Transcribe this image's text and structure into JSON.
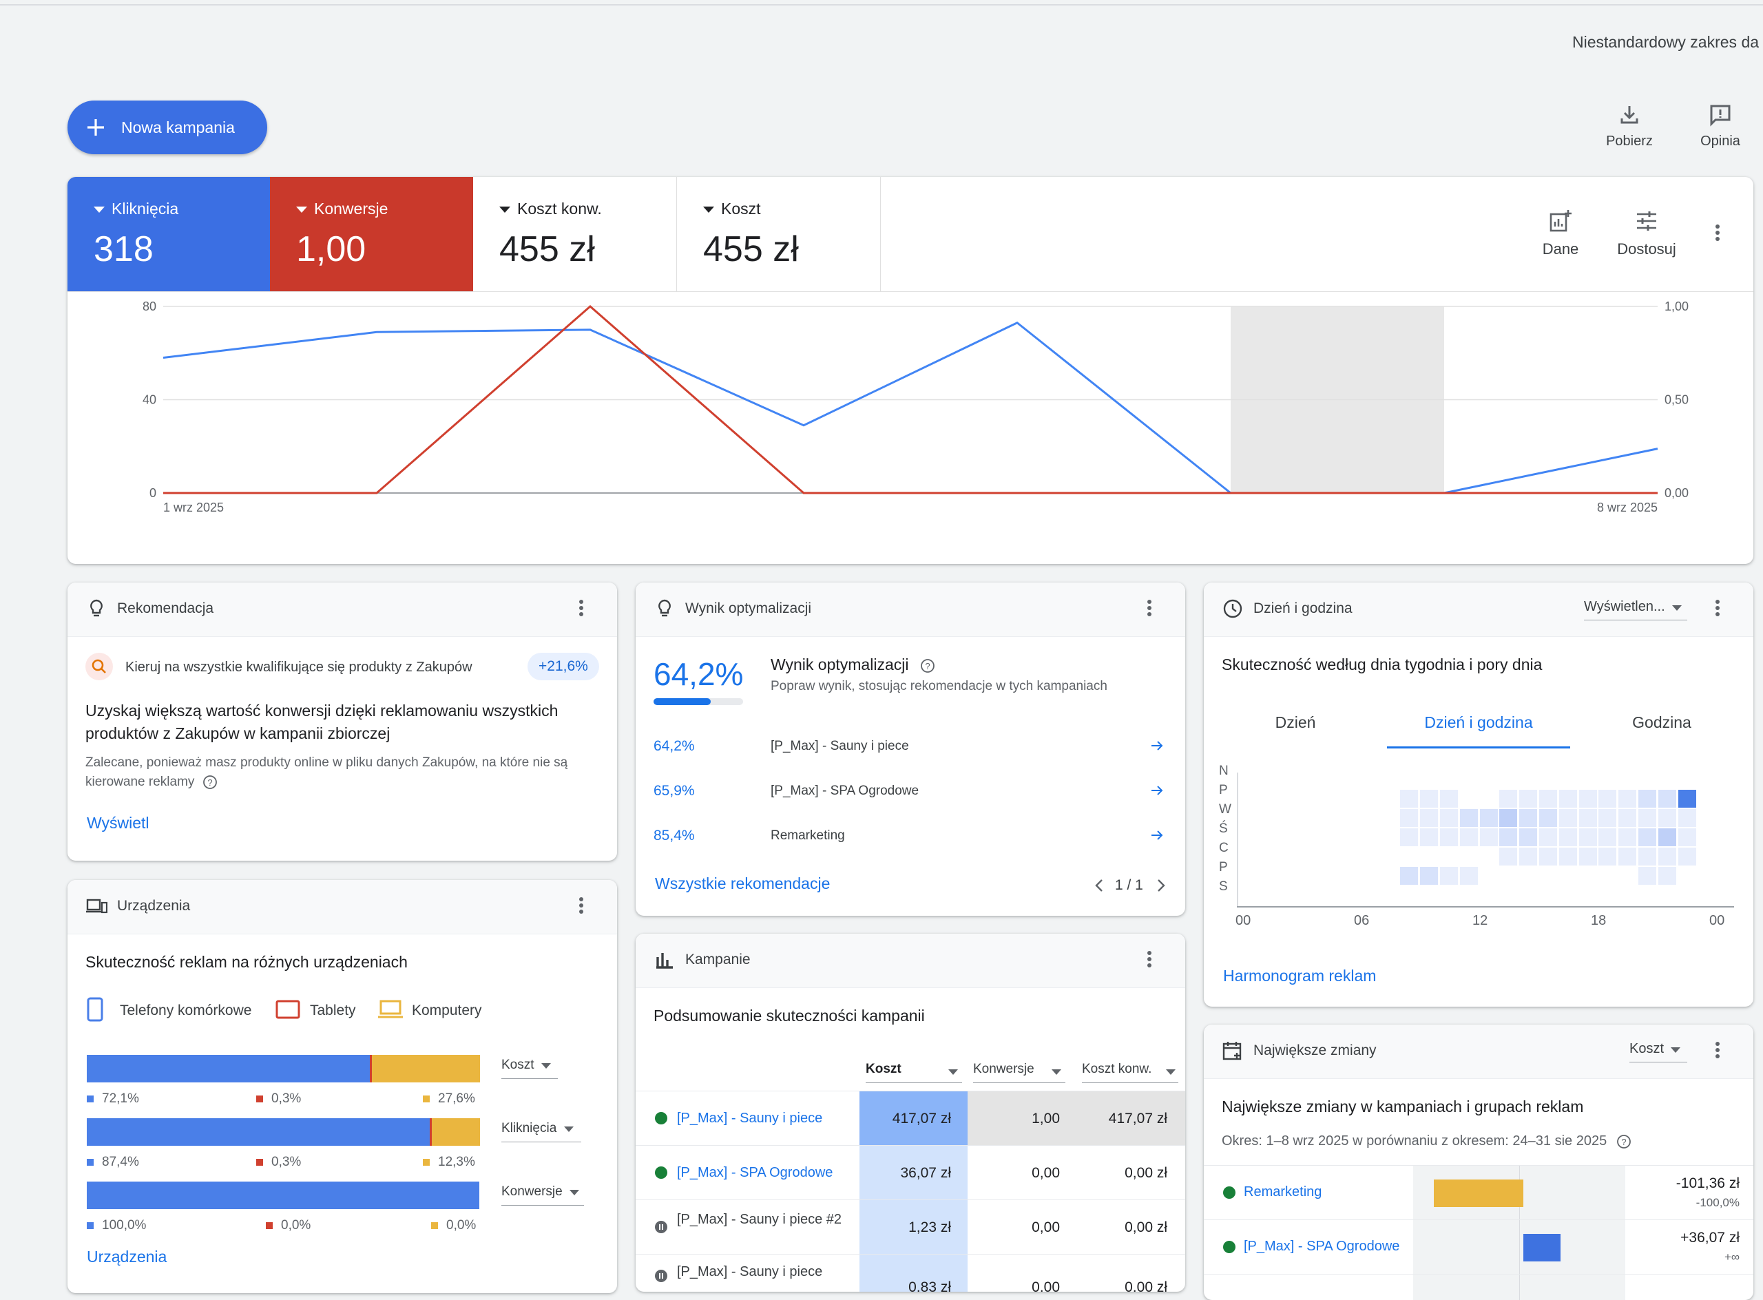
{
  "header": {
    "date_range": "Niestandardowy zakres da"
  },
  "toolbar": {
    "new_campaign": "Nowa kampania",
    "download": "Pobierz",
    "feedback": "Opinia"
  },
  "scorecards": {
    "tiles": [
      {
        "label": "Kliknięcia",
        "value": "318",
        "color": "#4285f4"
      },
      {
        "label": "Konwersje",
        "value": "1,00",
        "color": "#d0402f"
      },
      {
        "label": "Koszt konw.",
        "value": "455 zł"
      },
      {
        "label": "Koszt",
        "value": "455 zł"
      }
    ],
    "data_label": "Dane",
    "customize_label": "Dostosuj"
  },
  "chart_data": {
    "type": "line",
    "x": [
      "2025-09-01",
      "2025-09-02",
      "2025-09-03",
      "2025-09-04",
      "2025-09-05",
      "2025-09-06",
      "2025-09-07",
      "2025-09-08"
    ],
    "xtick_labels": [
      "1 wrz 2025",
      "8 wrz 2025"
    ],
    "series": [
      {
        "name": "Kliknięcia",
        "axis": "left",
        "color": "#4285f4",
        "values": [
          58,
          69,
          70,
          29,
          73,
          0,
          0,
          19
        ]
      },
      {
        "name": "Konwersje",
        "axis": "right",
        "color": "#d0402f",
        "values": [
          0,
          0,
          1.0,
          0,
          0,
          0,
          0,
          0
        ]
      }
    ],
    "y_left": {
      "ticks": [
        "80",
        "40",
        "0"
      ],
      "lim": [
        0,
        80
      ]
    },
    "y_right": {
      "ticks": [
        "1,00",
        "0,50",
        "0,00"
      ],
      "lim": [
        0,
        1
      ]
    },
    "highlight_x": [
      "2025-09-06",
      "2025-09-07"
    ],
    "grid": true
  },
  "recommendation": {
    "title": "Rekomendacja",
    "item": "Kieruj na wszystkie kwalifikujące się produkty z Zakupów",
    "badge": "+21,6%",
    "headline": "Uzyskaj większą wartość konwersji dzięki reklamowaniu wszystkich produktów z Zakupów w kampanii zbiorczej",
    "body": "Zalecane, ponieważ masz produkty online w pliku danych Zakupów, na które nie są kierowane reklamy",
    "action": "Wyświetl"
  },
  "optimization": {
    "title": "Wynik optymalizacji",
    "score": "64,2%",
    "score_fraction": 0.642,
    "heading": "Wynik optymalizacji",
    "subtitle": "Popraw wynik, stosując rekomendacje w tych kampaniach",
    "rows": [
      {
        "score": "64,2%",
        "name": "[P_Max] - Sauny i piece"
      },
      {
        "score": "65,9%",
        "name": "[P_Max] - SPA Ogrodowe"
      },
      {
        "score": "85,4%",
        "name": "Remarketing"
      }
    ],
    "all_link": "Wszystkie rekomendacje",
    "pager": "1 / 1"
  },
  "daytime": {
    "title": "Dzień i godzina",
    "view_select": "Wyświetlen...",
    "heading": "Skuteczność według dnia tygodnia i pory dnia",
    "tabs": [
      "Dzień",
      "Dzień i godzina",
      "Godzina"
    ],
    "days": [
      "N",
      "P",
      "W",
      "Ś",
      "C",
      "P",
      "S"
    ],
    "hours": [
      "00",
      "06",
      "12",
      "18",
      "00"
    ],
    "link": "Harmonogram reklam"
  },
  "devices": {
    "title": "Urządzenia",
    "heading": "Skuteczność reklam na różnych urządzeniach",
    "legend": [
      "Telefony komórkowe",
      "Tablety",
      "Komputery"
    ],
    "colors": [
      "#4a7fe8",
      "#d0402f",
      "#eab63f"
    ],
    "bars": [
      {
        "metric": "Koszt",
        "values": [
          72.1,
          0.3,
          27.6
        ],
        "labels": [
          "72,1%",
          "0,3%",
          "27,6%"
        ]
      },
      {
        "metric": "Kliknięcia",
        "values": [
          87.4,
          0.3,
          12.3
        ],
        "labels": [
          "87,4%",
          "0,3%",
          "12,3%"
        ]
      },
      {
        "metric": "Konwersje",
        "values": [
          100.0,
          0.0,
          0.0
        ],
        "labels": [
          "100,0%",
          "0,0%",
          "0,0%"
        ]
      }
    ],
    "link": "Urządzenia"
  },
  "campaigns": {
    "title": "Kampanie",
    "heading": "Podsumowanie skuteczności kampanii",
    "columns": [
      "Koszt",
      "Konwersje",
      "Koszt konw."
    ],
    "rows": [
      {
        "name": "[P_Max] - Sauny i piece",
        "status": "active",
        "cost": "417,07 zł",
        "conv": "1,00",
        "cpa": "417,07 zł"
      },
      {
        "name": "[P_Max] - SPA Ogrodowe",
        "status": "active",
        "cost": "36,07 zł",
        "conv": "0,00",
        "cpa": "0,00 zł"
      },
      {
        "name": "[P_Max] - Sauny i piece #2",
        "status": "paused",
        "cost": "1,23 zł",
        "conv": "0,00",
        "cpa": "0,00 zł"
      },
      {
        "name": "[P_Max] - Sauny i piece",
        "status": "paused",
        "cost": "0,83 zł",
        "conv": "0,00",
        "cpa": "0,00 zł"
      }
    ]
  },
  "changes": {
    "title": "Największe zmiany",
    "metric_select": "Koszt",
    "heading": "Największe zmiany w kampaniach i grupach reklam",
    "period": "Okres: 1–8 wrz 2025 w porównaniu z okresem: 24–31 sie 2025",
    "rows": [
      {
        "name": "Remarketing",
        "value": "-101,36 zł",
        "pct": "-100,0%",
        "bar_color": "#eab63f"
      },
      {
        "name": "[P_Max] - SPA Ogrodowe",
        "value": "+36,07 zł",
        "pct": "+∞",
        "bar_color": "#3e72e0"
      }
    ]
  }
}
